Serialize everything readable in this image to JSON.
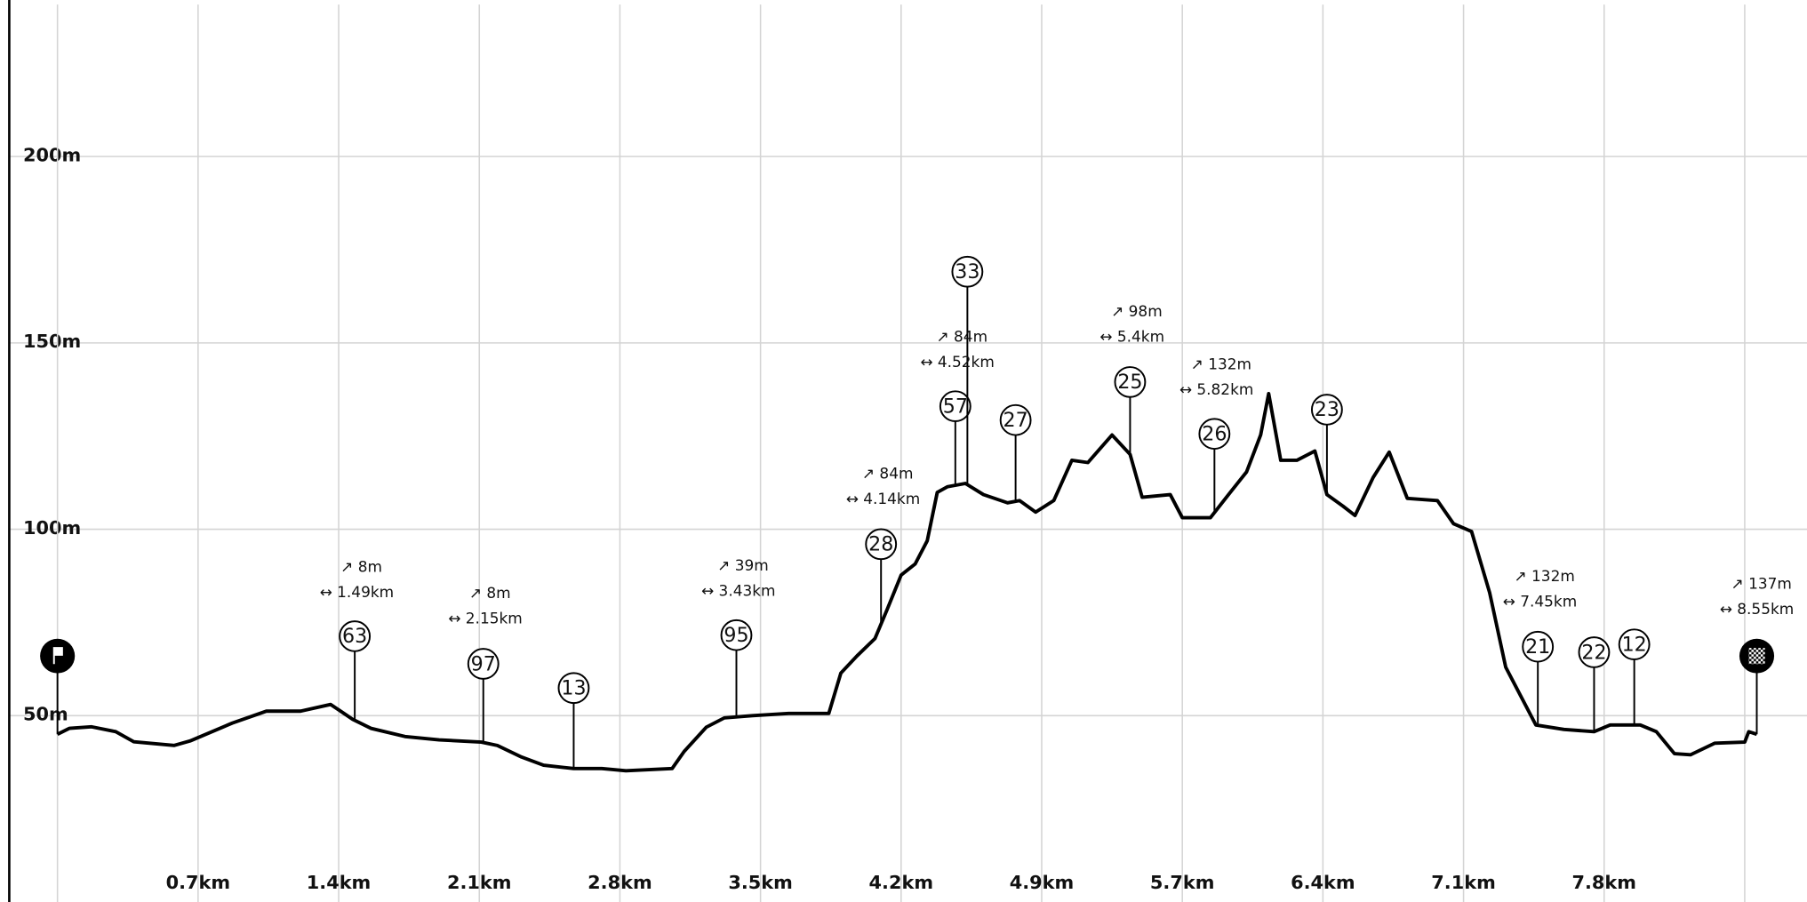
{
  "chart_data": {
    "type": "line",
    "color": "#000000",
    "grid": true,
    "xlim": [
      -0.24,
      8.71
    ],
    "ylim": [
      0,
      242
    ],
    "xticks": [
      {
        "value": 0,
        "label": null
      },
      {
        "value": 0.7,
        "label": "0.7km"
      },
      {
        "value": 1.4,
        "label": "1.4km"
      },
      {
        "value": 2.1,
        "label": "2.1km"
      },
      {
        "value": 2.8,
        "label": "2.8km"
      },
      {
        "value": 3.5,
        "label": "3.5km"
      },
      {
        "value": 4.2,
        "label": "4.2km"
      },
      {
        "value": 4.9,
        "label": "4.9km"
      },
      {
        "value": 5.6,
        "label": "5.7km"
      },
      {
        "value": 6.3,
        "label": "6.4km"
      },
      {
        "value": 7.0,
        "label": "7.1km"
      },
      {
        "value": 7.7,
        "label": "7.8km"
      },
      {
        "value": 8.4,
        "label": null
      }
    ],
    "yticks": [
      {
        "value": 50,
        "label": "50m"
      },
      {
        "value": 100,
        "label": "100m"
      },
      {
        "value": 150,
        "label": "150m"
      },
      {
        "value": 200,
        "label": "200m"
      }
    ],
    "x": [
      0,
      0.06,
      0.17,
      0.29,
      0.38,
      0.58,
      0.66,
      0.87,
      1.04,
      1.21,
      1.36,
      1.47,
      1.56,
      1.73,
      1.9,
      2.11,
      2.19,
      2.31,
      2.42,
      2.57,
      2.71,
      2.83,
      3.06,
      3.12,
      3.23,
      3.32,
      3.46,
      3.64,
      3.84,
      3.9,
      3.98,
      4.07,
      4.13,
      4.2,
      4.27,
      4.33,
      4.38,
      4.43,
      4.52,
      4.61,
      4.73,
      4.79,
      4.87,
      4.96,
      5.05,
      5.13,
      5.25,
      5.34,
      5.4,
      5.54,
      5.6,
      5.74,
      5.83,
      5.92,
      5.99,
      6.03,
      6.09,
      6.17,
      6.26,
      6.32,
      6.4,
      6.46,
      6.55,
      6.63,
      6.72,
      6.87,
      6.95,
      7.04,
      7.13,
      7.21,
      7.36,
      7.5,
      7.65,
      7.73,
      7.88,
      7.96,
      8.05,
      8.13,
      8.25,
      8.4,
      8.42,
      8.46
    ],
    "values": [
      45,
      46.6,
      47,
      45.7,
      43,
      42,
      43.2,
      48,
      51.2,
      51.2,
      53,
      49,
      46.6,
      44.4,
      43.5,
      42.9,
      42,
      38.9,
      36.7,
      35.8,
      35.8,
      35.2,
      35.8,
      40.4,
      46.9,
      49.4,
      50,
      50.6,
      50.6,
      61.4,
      66,
      70.7,
      78.4,
      87.7,
      90.7,
      96.9,
      109.9,
      111.4,
      112.3,
      109.3,
      107.1,
      107.7,
      104.6,
      107.7,
      118.5,
      117.9,
      125.3,
      120.1,
      108.6,
      109.3,
      103.1,
      103.1,
      109.3,
      115.4,
      125.3,
      136.4,
      118.5,
      118.5,
      121,
      109.3,
      106.2,
      103.7,
      113.9,
      120.7,
      108.3,
      107.7,
      101.5,
      99.4,
      83,
      63,
      47.5,
      46.3,
      45.7,
      47.5,
      47.5,
      45.7,
      39.8,
      39.5,
      42.6,
      42.9,
      45.7,
      45
    ],
    "endpoints": [
      {
        "icon": "start",
        "x": 0,
        "y": 66
      },
      {
        "icon": "finish",
        "x": 8.46,
        "y": 66
      }
    ],
    "waypoints": [
      {
        "label": "63",
        "x": 1.48,
        "y": 71.3
      },
      {
        "label": "97",
        "x": 2.12,
        "y": 63.9
      },
      {
        "label": "13",
        "x": 2.57,
        "y": 57.4
      },
      {
        "label": "95",
        "x": 3.38,
        "y": 71.6
      },
      {
        "label": "28",
        "x": 4.1,
        "y": 96
      },
      {
        "label": "57",
        "x": 4.47,
        "y": 133
      },
      {
        "label": "33",
        "x": 4.53,
        "y": 169.1
      },
      {
        "label": "27",
        "x": 4.77,
        "y": 129.3
      },
      {
        "label": "25",
        "x": 5.34,
        "y": 139.5
      },
      {
        "label": "26",
        "x": 5.76,
        "y": 125.6
      },
      {
        "label": "23",
        "x": 6.32,
        "y": 132.1
      },
      {
        "label": "21",
        "x": 7.37,
        "y": 68.5
      },
      {
        "label": "22",
        "x": 7.65,
        "y": 67
      },
      {
        "label": "12",
        "x": 7.85,
        "y": 69.1
      }
    ],
    "annotations": [
      {
        "climb": "↗  8m",
        "distance": "↔  1.49km",
        "x": 1.49,
        "y": 89.8
      },
      {
        "climb": "↗  8m",
        "distance": "↔  2.15km",
        "x": 2.13,
        "y": 82.7
      },
      {
        "climb": "↗  39m",
        "distance": "↔  3.43km",
        "x": 3.39,
        "y": 90.1
      },
      {
        "climb": "↗  84m",
        "distance": "↔  4.14km",
        "x": 4.11,
        "y": 114.8
      },
      {
        "climb": "↗  84m",
        "distance": "↔  4.52km",
        "x": 4.48,
        "y": 151.5
      },
      {
        "climb": "↗  98m",
        "distance": "↔  5.4km",
        "x": 5.35,
        "y": 158.3
      },
      {
        "climb": "↗  132m",
        "distance": "↔  5.82km",
        "x": 5.77,
        "y": 144.1
      },
      {
        "climb": "↗  132m",
        "distance": "↔  7.45km",
        "x": 7.38,
        "y": 87.3
      },
      {
        "climb": "↗  137m",
        "distance": "↔  8.55km",
        "x": 8.46,
        "y": 85.2
      }
    ]
  }
}
